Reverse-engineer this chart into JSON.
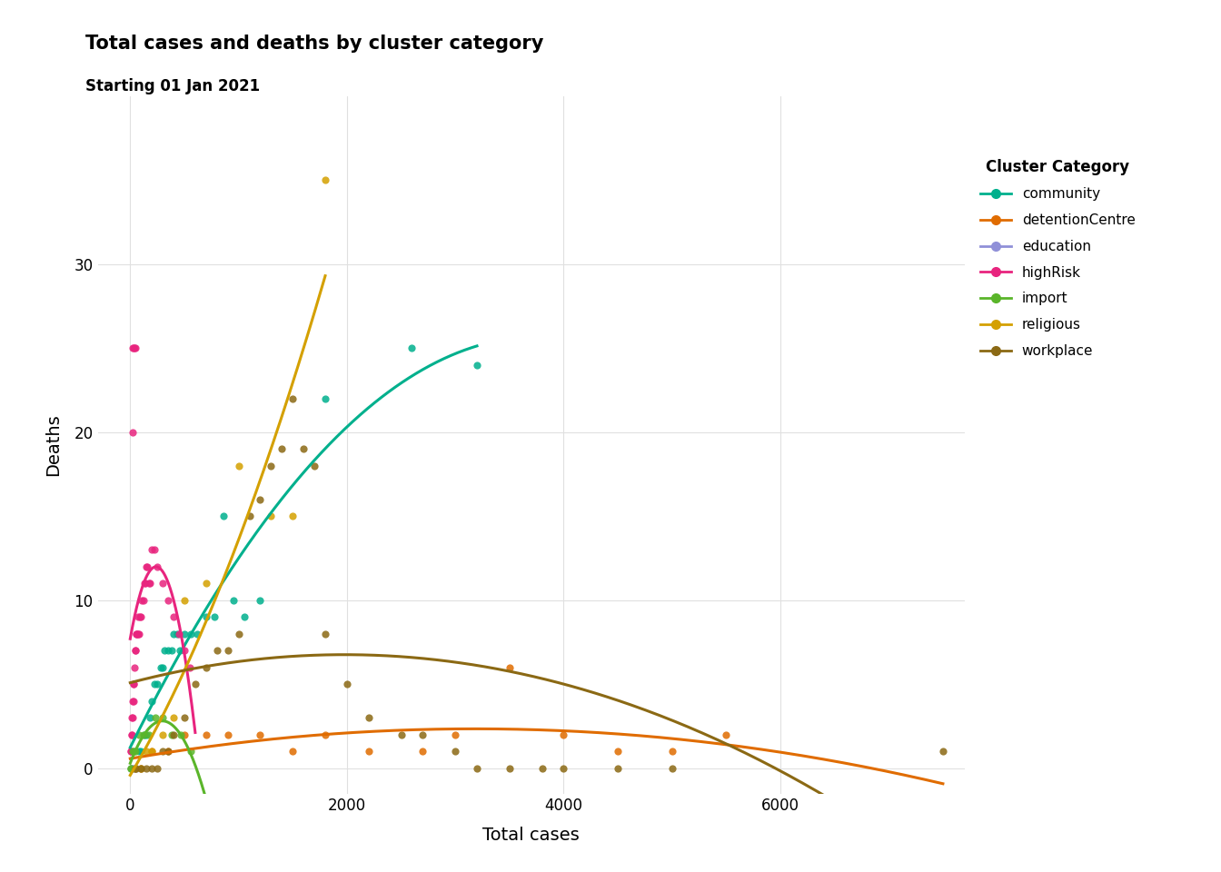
{
  "title": "Total cases and deaths by cluster category",
  "subtitle": "Starting 01 Jan 2021",
  "xlabel": "Total cases",
  "ylabel": "Deaths",
  "xlim": [
    -300,
    7700
  ],
  "ylim": [
    -1.5,
    40
  ],
  "yticks": [
    0,
    10,
    20,
    30
  ],
  "xticks": [
    0,
    2000,
    4000,
    6000
  ],
  "background_color": "#ffffff",
  "grid_color": "#e0e0e0",
  "legend_title": "Cluster Category",
  "colors": {
    "community": "#00b08d",
    "detentionCentre": "#e06c00",
    "education": "#9090d8",
    "highRisk": "#e8247e",
    "import": "#5ab52a",
    "religious": "#d4a000",
    "workplace": "#8b6914"
  },
  "scatter": {
    "community": {
      "x": [
        50,
        80,
        100,
        130,
        150,
        180,
        200,
        220,
        250,
        280,
        300,
        320,
        350,
        380,
        400,
        430,
        460,
        500,
        560,
        620,
        700,
        780,
        860,
        950,
        1050,
        1200,
        1800,
        2600,
        3200
      ],
      "y": [
        0,
        1,
        1,
        2,
        2,
        3,
        4,
        5,
        5,
        6,
        6,
        7,
        7,
        7,
        8,
        8,
        7,
        8,
        8,
        8,
        9,
        9,
        15,
        10,
        9,
        10,
        22,
        25,
        24
      ]
    },
    "detentionCentre": {
      "x": [
        50,
        100,
        200,
        350,
        500,
        700,
        900,
        1200,
        1500,
        1800,
        2200,
        2700,
        3000,
        3500,
        4000,
        4500,
        5000,
        5500
      ],
      "y": [
        0,
        0,
        1,
        1,
        2,
        2,
        2,
        2,
        1,
        2,
        1,
        1,
        2,
        6,
        2,
        1,
        1,
        2
      ]
    },
    "education": {
      "x": [
        5,
        15,
        25,
        40,
        60
      ],
      "y": [
        0,
        0,
        0,
        0,
        0
      ]
    },
    "highRisk": {
      "x": [
        5,
        8,
        12,
        15,
        18,
        22,
        25,
        28,
        32,
        35,
        40,
        45,
        50,
        55,
        60,
        65,
        70,
        75,
        80,
        90,
        100,
        110,
        120,
        130,
        140,
        150,
        160,
        170,
        180,
        200,
        220,
        250,
        300,
        350,
        400,
        450,
        500,
        550,
        20,
        25,
        30,
        40,
        50
      ],
      "y": [
        1,
        1,
        2,
        2,
        3,
        3,
        4,
        4,
        5,
        5,
        6,
        7,
        7,
        8,
        8,
        8,
        9,
        8,
        8,
        9,
        9,
        10,
        10,
        11,
        11,
        12,
        12,
        11,
        11,
        13,
        13,
        12,
        11,
        10,
        9,
        8,
        7,
        6,
        20,
        25,
        25,
        25,
        25
      ]
    },
    "import": {
      "x": [
        5,
        10,
        20,
        30,
        50,
        80,
        120,
        170,
        230,
        300,
        380,
        470,
        560
      ],
      "y": [
        0,
        0,
        1,
        1,
        1,
        2,
        2,
        2,
        3,
        3,
        2,
        2,
        1
      ]
    },
    "religious": {
      "x": [
        50,
        100,
        150,
        200,
        300,
        400,
        500,
        700,
        1000,
        1300,
        1500,
        1800
      ],
      "y": [
        0,
        0,
        1,
        1,
        2,
        3,
        10,
        11,
        18,
        15,
        15,
        35
      ]
    },
    "workplace": {
      "x": [
        50,
        100,
        150,
        200,
        250,
        300,
        350,
        400,
        500,
        600,
        700,
        800,
        900,
        1000,
        1100,
        1200,
        1300,
        1400,
        1500,
        1600,
        1700,
        1800,
        2000,
        2200,
        2500,
        2700,
        3000,
        3200,
        3500,
        3800,
        4000,
        4500,
        5000,
        7500
      ],
      "y": [
        0,
        0,
        0,
        0,
        0,
        1,
        1,
        2,
        3,
        5,
        6,
        7,
        7,
        8,
        15,
        16,
        18,
        19,
        22,
        19,
        18,
        8,
        5,
        3,
        2,
        2,
        1,
        0,
        0,
        0,
        0,
        0,
        0,
        1
      ]
    }
  },
  "fit_lines": {
    "community": {
      "x_start": 0,
      "x_end": 3200,
      "coeffs": [
        0.0,
        0.008,
        -0.1
      ]
    },
    "detentionCentre": {
      "x_start": 0,
      "x_end": 7500,
      "coeffs": [
        -1.5e-07,
        0.0012,
        0.0
      ]
    },
    "highRisk": {
      "x_start": 0,
      "x_end": 600,
      "coeffs": [
        -0.0002,
        0.15,
        0.0
      ]
    },
    "import": {
      "x_start": 0,
      "x_end": 700,
      "coeffs": [
        -1.5e-05,
        0.012,
        0.0
      ]
    },
    "religious": {
      "x_start": 0,
      "x_end": 1800,
      "coeffs": [
        0.0,
        0.019,
        -0.5
      ]
    },
    "workplace": {
      "x_start": 0,
      "x_end": 7500,
      "coeffs": [
        -5e-07,
        0.003,
        0.0
      ]
    }
  }
}
